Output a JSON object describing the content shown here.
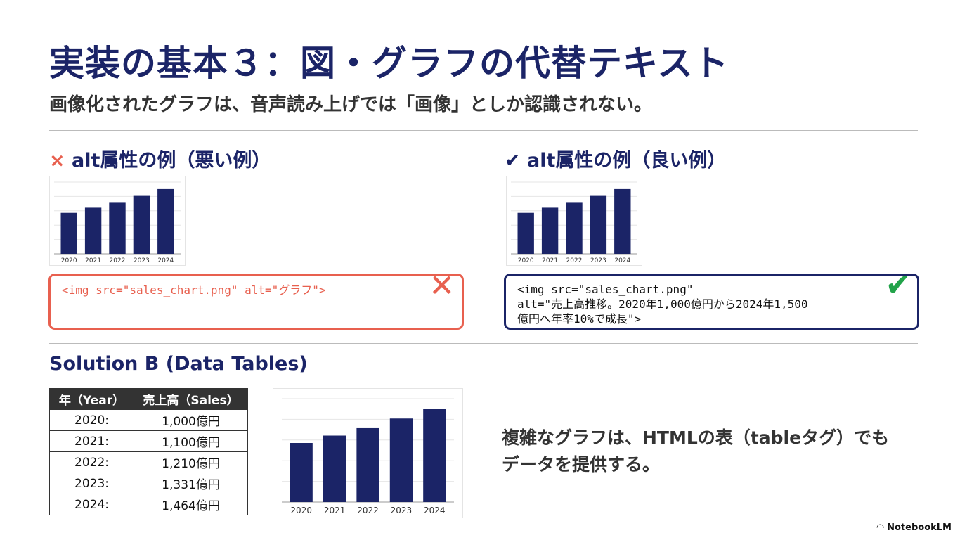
{
  "title": "実装の基本３：図・グラフの代替テキスト",
  "subtitle": "画像化されたグラフは、音声読み上げでは「画像」としか認識されない。",
  "bad": {
    "mark": "×",
    "heading": "alt属性の例（悪い例）",
    "code": "<img src=\"sales_chart.png\" alt=\"グラフ\">",
    "icon": "cross-icon",
    "color": "#e8604f"
  },
  "good": {
    "mark": "✔",
    "heading": "alt属性の例（良い例）",
    "code_lines": [
      "<img src=\"sales_chart.png\"",
      "alt=\"売上高推移。2020年1,000億円から2024年1,500",
      "億円へ年率10%で成長\">"
    ],
    "icon": "check-icon",
    "color": "#22a34a"
  },
  "solution": {
    "heading": "Solution B (Data Tables)",
    "table": {
      "headers": [
        "年（Year）",
        "売上高（Sales）"
      ],
      "rows": [
        [
          "2020:",
          "1,000億円"
        ],
        [
          "2021:",
          "1,100億円"
        ],
        [
          "2022:",
          "1,210億円"
        ],
        [
          "2023:",
          "1,331億円"
        ],
        [
          "2024:",
          "1,464億円"
        ]
      ]
    },
    "note_lines": [
      "複雑なグラフは、HTMLの表（tableタグ）でも",
      "データを提供する。"
    ]
  },
  "chart_data": {
    "type": "bar",
    "categories": [
      "2020",
      "2021",
      "2022",
      "2023",
      "2024"
    ],
    "values": [
      1000,
      1100,
      1210,
      1331,
      1464
    ],
    "ylim": [
      200,
      1600
    ],
    "grid": true,
    "bar_color": "#1b2467"
  },
  "footer": {
    "logo": "NotebookLM"
  }
}
